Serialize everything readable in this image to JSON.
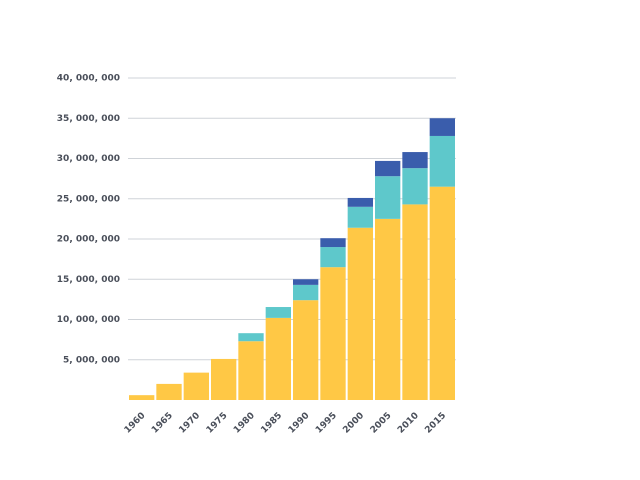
{
  "chart_data": {
    "type": "stacked_bar",
    "categories": [
      "1960",
      "1965",
      "1970",
      "1975",
      "1980",
      "1985",
      "1990",
      "1995",
      "2000",
      "2005",
      "2010",
      "2015"
    ],
    "series": [
      {
        "color": "#ffc845",
        "values": [
          600000,
          2000000,
          3400000,
          5100000,
          7300000,
          10200000,
          12400000,
          16500000,
          21400000,
          22500000,
          24300000,
          26500000
        ]
      },
      {
        "color": "#5ec8cb",
        "values": [
          null,
          null,
          null,
          null,
          1000000,
          1350000,
          1900000,
          2500000,
          2600000,
          5300000,
          4500000,
          6300000
        ]
      },
      {
        "color": "#3a5dac",
        "values": [
          null,
          null,
          null,
          null,
          null,
          null,
          700000,
          1100000,
          1100000,
          1900000,
          2000000,
          2200000
        ]
      }
    ],
    "ylim": [
      0,
      40000000
    ],
    "yticks": [
      {
        "value": 5000000,
        "label": "5, 000, 000"
      },
      {
        "value": 10000000,
        "label": "10, 000, 000"
      },
      {
        "value": 15000000,
        "label": "15, 000, 000"
      },
      {
        "value": 20000000,
        "label": "20, 000, 000"
      },
      {
        "value": 25000000,
        "label": "25, 000, 000"
      },
      {
        "value": 30000000,
        "label": "30, 000, 000"
      },
      {
        "value": 35000000,
        "label": "35, 000, 000"
      },
      {
        "value": 40000000,
        "label": "40, 000, 000"
      }
    ],
    "grid": true
  }
}
